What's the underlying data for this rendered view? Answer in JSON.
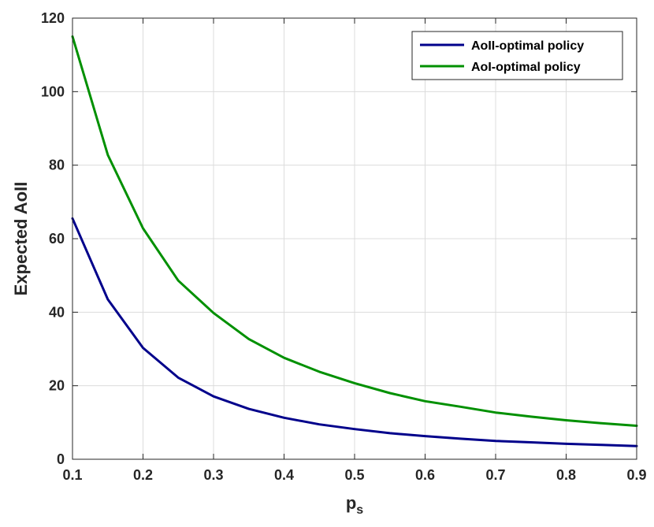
{
  "chart_data": {
    "type": "line",
    "xlabel": "p",
    "xlabel_subscript": "s",
    "ylabel": "Expected AoII",
    "xlim": [
      0.1,
      0.9
    ],
    "ylim": [
      0,
      120
    ],
    "xticks": [
      0.1,
      0.2,
      0.3,
      0.4,
      0.5,
      0.6,
      0.7,
      0.8,
      0.9
    ],
    "yticks": [
      0,
      20,
      40,
      60,
      80,
      100,
      120
    ],
    "xtick_labels": [
      "0.1",
      "0.2",
      "0.3",
      "0.4",
      "0.5",
      "0.6",
      "0.7",
      "0.8",
      "0.9"
    ],
    "ytick_labels": [
      "0",
      "20",
      "40",
      "60",
      "80",
      "100",
      "120"
    ],
    "grid": true,
    "legend_position": "top-right",
    "x": [
      0.1,
      0.15,
      0.2,
      0.25,
      0.3,
      0.35,
      0.4,
      0.45,
      0.5,
      0.55,
      0.6,
      0.65,
      0.7,
      0.75,
      0.8,
      0.85,
      0.9
    ],
    "series": [
      {
        "name": "AoII-optimal policy",
        "color": "#00008B",
        "values": [
          65.5,
          43.5,
          30.3,
          22.2,
          17.1,
          13.7,
          11.3,
          9.5,
          8.2,
          7.1,
          6.3,
          5.6,
          5.0,
          4.6,
          4.2,
          3.9,
          3.6
        ]
      },
      {
        "name": "AoI-optimal policy",
        "color": "#009000",
        "values": [
          115,
          82.8,
          62.8,
          48.6,
          39.8,
          32.7,
          27.6,
          23.8,
          20.7,
          18.0,
          15.8,
          14.3,
          12.7,
          11.6,
          10.6,
          9.8,
          9.1
        ]
      }
    ]
  }
}
